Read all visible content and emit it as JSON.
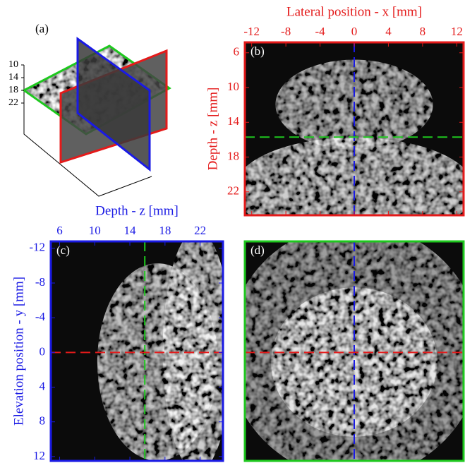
{
  "chart_data": [
    {
      "type": "3d-slices",
      "panel_label": "(a)",
      "zticks": [
        10,
        14,
        18,
        22
      ]
    },
    {
      "type": "image",
      "panel_label": "(b)",
      "xlabel": "Lateral position - x [mm]",
      "ylabel": "Depth - z [mm]",
      "xlim": [
        -12.8,
        12.8
      ],
      "ylim": [
        4.8,
        24.7
      ],
      "xticks": [
        -12,
        -8,
        -4,
        0,
        4,
        8,
        12
      ],
      "yticks": [
        6,
        10,
        14,
        18,
        22
      ],
      "color": "#e41a1a",
      "slices": [
        {
          "axis": "x",
          "value": 0,
          "color": "#1a1ae4"
        },
        {
          "axis": "y",
          "value": 15.7,
          "color": "#1ec81e"
        }
      ]
    },
    {
      "type": "image",
      "panel_label": "(c)",
      "xlabel": "Depth - z [mm]",
      "ylabel": "Elevation position - y [mm]",
      "xlim": [
        5,
        24.6
      ],
      "ylim": [
        -12.8,
        12.5
      ],
      "xticks": [
        6,
        10,
        14,
        18,
        22
      ],
      "yticks": [
        -12,
        -8,
        -4,
        0,
        4,
        8,
        12
      ],
      "color": "#1a1ae4",
      "slices": [
        {
          "axis": "x",
          "value": 15.7,
          "color": "#1ec81e"
        },
        {
          "axis": "y",
          "value": 0,
          "color": "#e41a1a"
        }
      ]
    },
    {
      "type": "image",
      "panel_label": "(d)",
      "xlim": [
        -12.8,
        12.8
      ],
      "ylim": [
        -12.8,
        12.5
      ],
      "color": "#1ec81e",
      "slices": [
        {
          "axis": "x",
          "value": 0,
          "color": "#1a1ae4"
        },
        {
          "axis": "y",
          "value": 0,
          "color": "#e41a1a"
        }
      ]
    }
  ]
}
